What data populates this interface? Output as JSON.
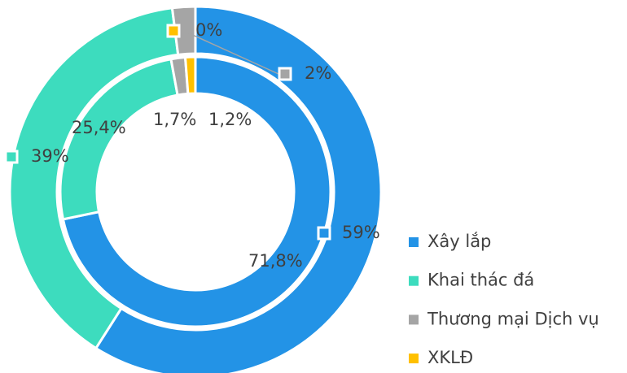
{
  "chart_data": {
    "type": "donut",
    "categories": [
      "Xây lắp",
      "Khai thác đá",
      "Thương mại Dịch vụ",
      "XKLĐ"
    ],
    "colors": [
      "#2393e6",
      "#3ddcbe",
      "#a5a5a5",
      "#ffc000"
    ],
    "series": [
      {
        "values": [
          59,
          39,
          2,
          0
        ],
        "value_labels": [
          "59%",
          "39%",
          "2%",
          "0%"
        ]
      },
      {
        "values": [
          71.8,
          25.4,
          1.7,
          1.2
        ],
        "value_labels": [
          "71,8%",
          "25,4%",
          "1,7%",
          "1,2%"
        ]
      }
    ],
    "legend": "right"
  }
}
